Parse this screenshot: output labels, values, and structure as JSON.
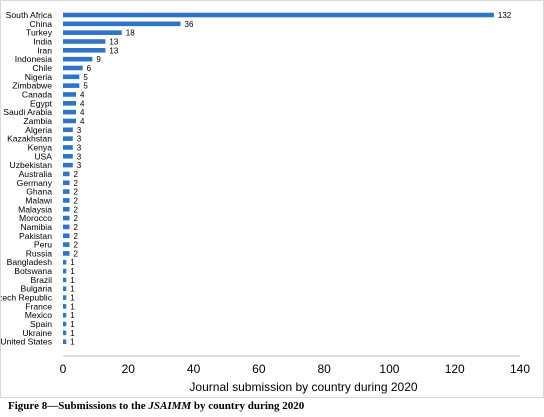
{
  "chart_data": {
    "type": "bar",
    "orientation": "horizontal",
    "categories": [
      "South Africa",
      "China",
      "Turkey",
      "India",
      "Iran",
      "Indonesia",
      "Chile",
      "Nigeria",
      "Zimbabwe",
      "Canada",
      "Egypt",
      "Saudi Arabia",
      "Zambia",
      "Algeria",
      "Kazakhstan",
      "Kenya",
      "USA",
      "Uzbekistan",
      "Australia",
      "Germany",
      "Ghana",
      "Malawi",
      "Malaysia",
      "Morocco",
      "Namibia",
      "Pakistan",
      "Peru",
      "Russia",
      "Bangladesh",
      "Botswana",
      "Brazil",
      "Bulgaria",
      "Czech Republic",
      "France",
      "Mexico",
      "Spain",
      "Ukraine",
      "United States"
    ],
    "values": [
      132,
      36,
      18,
      13,
      13,
      9,
      6,
      5,
      5,
      4,
      4,
      4,
      4,
      3,
      3,
      3,
      3,
      3,
      2,
      2,
      2,
      2,
      2,
      2,
      2,
      2,
      2,
      2,
      1,
      1,
      1,
      1,
      1,
      1,
      1,
      1,
      1,
      1
    ],
    "xlabel": "Journal submission by country during 2020",
    "ylabel": "",
    "xlim": [
      0,
      140
    ],
    "xticks": [
      0,
      20,
      40,
      60,
      80,
      100,
      120,
      140
    ],
    "grid": false,
    "legend": "none",
    "bar_color": "#2e75c9"
  },
  "caption": {
    "prefix": "Figure 8—Submissions to the ",
    "journal": "JSAIMM",
    "suffix": " by country during 2020"
  }
}
